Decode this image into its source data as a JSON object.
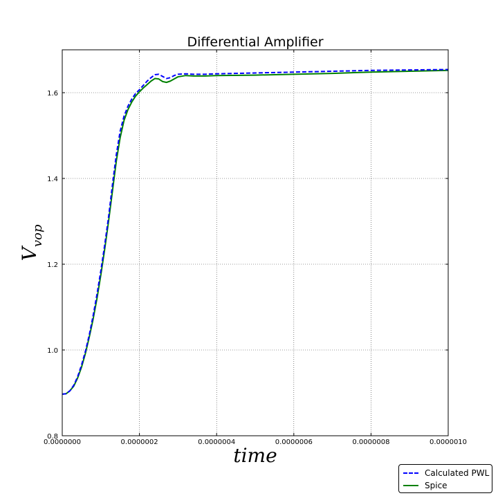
{
  "chart_data": {
    "type": "line",
    "title": "Differential Amplifier",
    "xlabel": "time",
    "ylabel_base": "V",
    "ylabel_sub": "vop",
    "xlim": [
      0,
      1e-06
    ],
    "ylim": [
      0.8,
      1.7
    ],
    "x_ticks": [
      0,
      2e-07,
      4e-07,
      6e-07,
      8e-07,
      1e-06
    ],
    "x_tick_labels": [
      "0.0000000",
      "0.0000002",
      "0.0000004",
      "0.0000006",
      "0.0000008",
      "0.0000010"
    ],
    "y_ticks": [
      0.8,
      1.0,
      1.2,
      1.4,
      1.6
    ],
    "y_tick_labels": [
      "0.8",
      "1.0",
      "1.2",
      "1.4",
      "1.6"
    ],
    "grid": true,
    "legend_position": "bottom-right",
    "series": [
      {
        "name": "Calculated PWL",
        "color": "#0000ff",
        "style": "dashed",
        "x": [
          0,
          1e-08,
          2e-08,
          3e-08,
          4e-08,
          5e-08,
          6e-08,
          7e-08,
          8e-08,
          9e-08,
          1e-07,
          1.1e-07,
          1.2e-07,
          1.3e-07,
          1.4e-07,
          1.5e-07,
          1.6e-07,
          1.7e-07,
          1.8e-07,
          1.9e-07,
          2e-07,
          2.1e-07,
          2.2e-07,
          2.3e-07,
          2.4e-07,
          2.5e-07,
          2.6e-07,
          2.7e-07,
          2.8e-07,
          2.9e-07,
          3e-07,
          3.2e-07,
          3.4e-07,
          3.7e-07,
          4e-07,
          5e-07,
          6e-07,
          7e-07,
          8e-07,
          9e-07,
          1e-06
        ],
        "y": [
          0.897,
          0.898,
          0.905,
          0.918,
          0.938,
          0.965,
          0.997,
          1.035,
          1.08,
          1.13,
          1.185,
          1.245,
          1.31,
          1.385,
          1.455,
          1.51,
          1.545,
          1.568,
          1.585,
          1.598,
          1.607,
          1.617,
          1.627,
          1.635,
          1.642,
          1.643,
          1.638,
          1.633,
          1.635,
          1.64,
          1.643,
          1.644,
          1.643,
          1.643,
          1.644,
          1.646,
          1.648,
          1.65,
          1.652,
          1.653,
          1.654
        ]
      },
      {
        "name": "Spice",
        "color": "#008000",
        "style": "solid",
        "x": [
          0,
          1e-08,
          2e-08,
          3e-08,
          4e-08,
          5e-08,
          6e-08,
          7e-08,
          8e-08,
          9e-08,
          1e-07,
          1.1e-07,
          1.2e-07,
          1.3e-07,
          1.4e-07,
          1.5e-07,
          1.6e-07,
          1.7e-07,
          1.8e-07,
          1.9e-07,
          2e-07,
          2.1e-07,
          2.2e-07,
          2.3e-07,
          2.4e-07,
          2.5e-07,
          2.6e-07,
          2.7e-07,
          2.8e-07,
          2.9e-07,
          3e-07,
          3.2e-07,
          3.4e-07,
          3.7e-07,
          4e-07,
          5e-07,
          6e-07,
          7e-07,
          8e-07,
          9e-07,
          1e-06
        ],
        "y": [
          0.897,
          0.898,
          0.905,
          0.916,
          0.935,
          0.96,
          0.992,
          1.03,
          1.072,
          1.12,
          1.175,
          1.235,
          1.3,
          1.37,
          1.44,
          1.495,
          1.535,
          1.56,
          1.578,
          1.592,
          1.602,
          1.611,
          1.619,
          1.627,
          1.633,
          1.632,
          1.626,
          1.624,
          1.627,
          1.632,
          1.637,
          1.64,
          1.639,
          1.639,
          1.64,
          1.641,
          1.643,
          1.645,
          1.648,
          1.65,
          1.652
        ]
      }
    ]
  }
}
